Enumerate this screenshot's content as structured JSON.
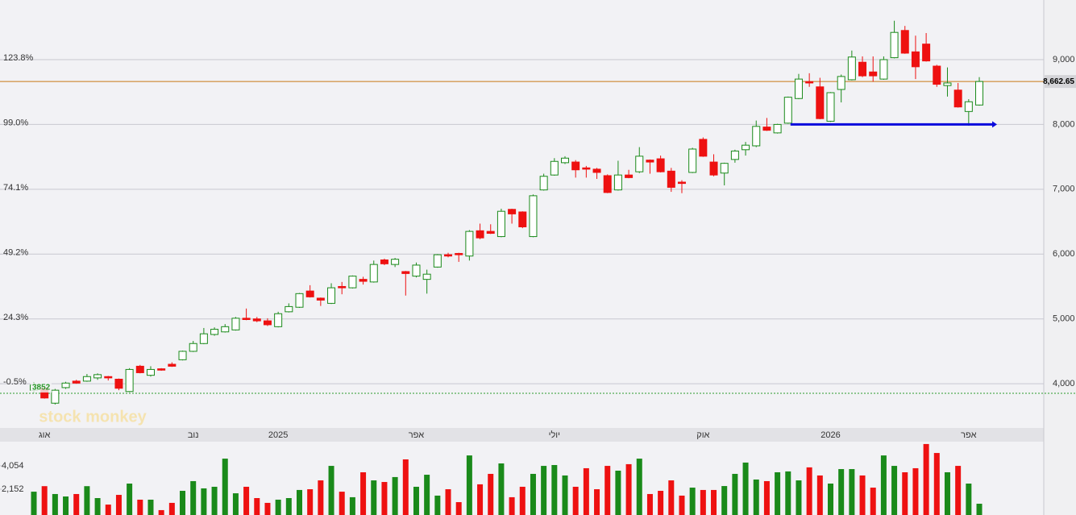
{
  "chart_data": {
    "type": "candlestick",
    "categories": [
      null,
      "אוג",
      null,
      null,
      null,
      null,
      null,
      null,
      null,
      null,
      null,
      null,
      null,
      null,
      null,
      "נוב",
      null,
      null,
      null,
      null,
      null,
      null,
      null,
      "2025",
      null,
      null,
      null,
      null,
      null,
      null,
      null,
      null,
      null,
      null,
      null,
      null,
      "אפר",
      null,
      null,
      null,
      null,
      null,
      null,
      null,
      null,
      null,
      null,
      null,
      null,
      "יולי",
      null,
      null,
      null,
      null,
      null,
      null,
      null,
      null,
      null,
      null,
      null,
      null,
      null,
      "אוק",
      null,
      null,
      null,
      null,
      null,
      null,
      null,
      null,
      null,
      null,
      null,
      "2026",
      null,
      null,
      null,
      null,
      null,
      null,
      null,
      null,
      null,
      null,
      null,
      null,
      "אפר",
      null
    ],
    "open": [
      3900,
      3930,
      3700,
      3940,
      4040,
      4040,
      4090,
      4110,
      4070,
      3880,
      4270,
      4130,
      4230,
      4300,
      4370,
      4500,
      4620,
      4760,
      4800,
      4830,
      5010,
      5000,
      4970,
      4880,
      5110,
      5180,
      5430,
      5320,
      5240,
      5500,
      5480,
      5610,
      5570,
      5910,
      5840,
      5730,
      5660,
      5610,
      5800,
      5990,
      6010,
      5970,
      6360,
      6350,
      6270,
      6690,
      6650,
      6270,
      6990,
      7220,
      7410,
      7420,
      7330,
      7310,
      7210,
      6990,
      7220,
      7270,
      7450,
      7470,
      7280,
      7110,
      7260,
      7770,
      7420,
      7250,
      7460,
      7610,
      7670,
      7960,
      7870,
      8020,
      8400,
      8660,
      8580,
      8050,
      8540,
      8690,
      8960,
      8810,
      8700,
      9030,
      9450,
      9120,
      9240,
      8900,
      8600,
      8530,
      8200,
      8300
    ],
    "high": [
      4020,
      3950,
      3920,
      4030,
      4060,
      4150,
      4160,
      4120,
      4080,
      4240,
      4290,
      4270,
      4240,
      4330,
      4510,
      4660,
      4860,
      4870,
      4920,
      5030,
      5160,
      5030,
      5010,
      5110,
      5240,
      5400,
      5520,
      5330,
      5550,
      5570,
      5670,
      5650,
      5900,
      5930,
      5940,
      5740,
      5870,
      5760,
      6000,
      6020,
      6020,
      6370,
      6470,
      6460,
      6700,
      6700,
      6660,
      6920,
      7240,
      7480,
      7510,
      7450,
      7360,
      7330,
      7230,
      7440,
      7300,
      7650,
      7460,
      7520,
      7330,
      7140,
      7640,
      7800,
      7540,
      7410,
      7610,
      7730,
      8060,
      8100,
      8010,
      8430,
      8780,
      8790,
      8720,
      8500,
      8770,
      9140,
      9050,
      9050,
      9050,
      9600,
      9520,
      9370,
      9410,
      8920,
      8880,
      8640,
      8390,
      8730
    ],
    "low": [
      3860,
      3770,
      3680,
      3920,
      4000,
      4030,
      4060,
      4050,
      3900,
      3870,
      4160,
      4110,
      4200,
      4260,
      4360,
      4490,
      4610,
      4740,
      4790,
      4820,
      4980,
      4950,
      4890,
      4870,
      5100,
      5170,
      5330,
      5200,
      5230,
      5380,
      5470,
      5530,
      5560,
      5830,
      5800,
      5360,
      5640,
      5390,
      5790,
      5950,
      5880,
      5900,
      6230,
      6310,
      6260,
      6470,
      6400,
      6260,
      6980,
      7210,
      7390,
      7180,
      7180,
      7160,
      6940,
      6980,
      7170,
      7250,
      7240,
      7260,
      6960,
      6940,
      7250,
      7500,
      7200,
      7060,
      7410,
      7520,
      7650,
      7900,
      7860,
      8010,
      8390,
      8580,
      8080,
      8040,
      8340,
      8680,
      8730,
      8660,
      8690,
      9020,
      9090,
      8700,
      8970,
      8580,
      8430,
      8260,
      7980,
      8290
    ],
    "close": [
      3980,
      3780,
      3900,
      4010,
      4010,
      4110,
      4140,
      4090,
      3930,
      4220,
      4170,
      4220,
      4210,
      4270,
      4500,
      4620,
      4770,
      4840,
      4880,
      5010,
      4990,
      4970,
      4910,
      5080,
      5190,
      5390,
      5340,
      5290,
      5480,
      5480,
      5660,
      5580,
      5840,
      5850,
      5920,
      5700,
      5830,
      5690,
      5990,
      5970,
      5990,
      6350,
      6250,
      6320,
      6660,
      6620,
      6420,
      6900,
      7200,
      7430,
      7480,
      7300,
      7310,
      7260,
      6950,
      7220,
      7180,
      7510,
      7420,
      7270,
      7030,
      7090,
      7620,
      7510,
      7220,
      7400,
      7590,
      7680,
      7970,
      7910,
      8000,
      8420,
      8700,
      8640,
      8090,
      8490,
      8740,
      9040,
      8750,
      8750,
      9000,
      9420,
      9100,
      8890,
      8980,
      8620,
      8640,
      8270,
      8350,
      8662.65
    ],
    "up_color": "#1a8a1a",
    "down_color": "#ee1111",
    "ylim": [
      3330,
      9920
    ],
    "yticks": [
      {
        "value": 4000,
        "label": "4,000"
      },
      {
        "value": 5000,
        "label": "5,000"
      },
      {
        "value": 6000,
        "label": "6,000"
      },
      {
        "value": 7000,
        "label": "7,000"
      },
      {
        "value": 8000,
        "label": "8,000"
      },
      {
        "value": 9000,
        "label": "9,000"
      }
    ],
    "y2lim": [
      -17.16,
      146.77
    ],
    "y2ticks": [
      {
        "value": -0.5,
        "label": "-0.5%"
      },
      {
        "value": 24.3,
        "label": "24.3%"
      },
      {
        "value": 49.2,
        "label": "49.2%"
      },
      {
        "value": 74.1,
        "label": "74.1%"
      },
      {
        "value": 99.0,
        "label": "99.0%"
      },
      {
        "value": 123.8,
        "label": "123.8%"
      }
    ],
    "last_price": {
      "value": 8662.65,
      "label": "8,662.65",
      "color": "#c87814"
    },
    "base_line": {
      "value": 3852,
      "label": "3852",
      "color": "#2a9a2a"
    },
    "support_line": {
      "value": 8000,
      "start_category_index": 71,
      "color": "#0a0adc"
    },
    "watermark": "stock monkey",
    "volume": {
      "values": [
        1950,
        2400,
        1760,
        1560,
        1760,
        2400,
        1430,
        900,
        1690,
        2610,
        1300,
        1300,
        450,
        1040,
        2020,
        2810,
        2220,
        2350,
        4640,
        1820,
        2350,
        1430,
        1040,
        1300,
        1430,
        2090,
        2150,
        2870,
        4050,
        1950,
        1500,
        3530,
        2870,
        2740,
        3140,
        4580,
        2350,
        3330,
        1630,
        2150,
        1100,
        4900,
        2550,
        3400,
        4250,
        1500,
        2350,
        3400,
        4050,
        4120,
        3270,
        2350,
        3860,
        2150,
        4050,
        3660,
        4190,
        4640,
        1760,
        2020,
        2870,
        1630,
        2280,
        2090,
        2090,
        2410,
        3400,
        4320,
        2940,
        2810,
        3530,
        3600,
        2870,
        3930,
        3270,
        2610,
        3790,
        3790,
        3270,
        2280,
        4900,
        4050,
        3530,
        3860,
        5830,
        5100,
        3530,
        4050,
        2610,
        970
      ],
      "ylim": [
        0,
        6022
      ],
      "yticks": [
        {
          "value": 2152,
          "label": "2,152"
        },
        {
          "value": 4054,
          "label": "4,054"
        }
      ]
    }
  }
}
